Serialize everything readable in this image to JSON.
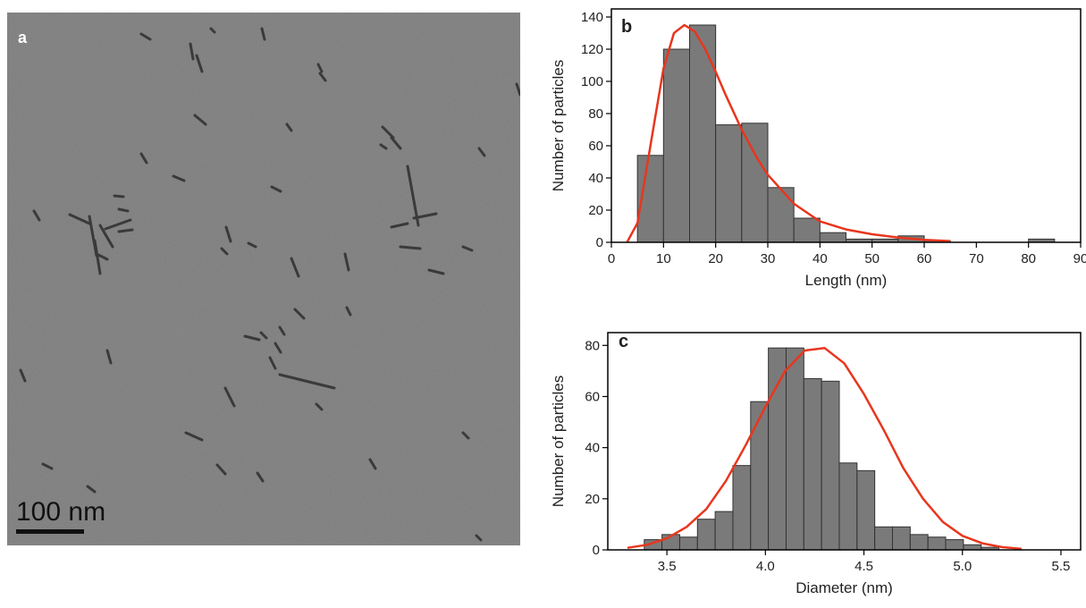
{
  "panel_a": {
    "label": "a",
    "scalebar_label": "100 nm"
  },
  "colors": {
    "bar_fill": "#7a7a7a",
    "bar_stroke": "#333333",
    "fit_line": "#e8361e",
    "tem_background": "#8c8c8c"
  },
  "chart_data": [
    {
      "type": "bar",
      "panel_label": "b",
      "title": "",
      "xlabel": "Length (nm)",
      "ylabel": "Number of particles",
      "xlim": [
        0,
        90
      ],
      "ylim": [
        0,
        145
      ],
      "xticks": [
        0,
        10,
        20,
        30,
        40,
        50,
        60,
        70,
        80,
        90
      ],
      "yticks": [
        0,
        20,
        40,
        60,
        80,
        100,
        120,
        140
      ],
      "bin_width": 5,
      "bins": [
        {
          "x": 7.5,
          "value": 54
        },
        {
          "x": 12.5,
          "value": 120
        },
        {
          "x": 17.5,
          "value": 135
        },
        {
          "x": 22.5,
          "value": 73
        },
        {
          "x": 27.5,
          "value": 74
        },
        {
          "x": 32.5,
          "value": 34
        },
        {
          "x": 37.5,
          "value": 15
        },
        {
          "x": 42.5,
          "value": 6
        },
        {
          "x": 47.5,
          "value": 2
        },
        {
          "x": 52.5,
          "value": 2
        },
        {
          "x": 57.5,
          "value": 4
        },
        {
          "x": 62.5,
          "value": 1
        },
        {
          "x": 82.5,
          "value": 2
        }
      ],
      "fit_curve": {
        "type": "lognormal",
        "x": [
          3,
          5,
          8,
          10,
          12,
          14,
          16,
          18,
          20,
          22,
          25,
          28,
          30,
          35,
          40,
          45,
          50,
          55,
          60,
          65
        ],
        "y": [
          0,
          12,
          70,
          108,
          130,
          135,
          131,
          120,
          106,
          91,
          70,
          52,
          42,
          24,
          13,
          8,
          5,
          3,
          1.5,
          0.8
        ]
      }
    },
    {
      "type": "bar",
      "panel_label": "c",
      "title": "",
      "xlabel": "Diameter (nm)",
      "ylabel": "Number of particles",
      "xlim": [
        3.2,
        5.6
      ],
      "ylim": [
        0,
        85
      ],
      "xticks": [
        3.5,
        4.0,
        4.5,
        5.0,
        5.5
      ],
      "yticks": [
        0,
        20,
        40,
        60,
        80
      ],
      "bin_width": 0.09,
      "bins": [
        {
          "x": 3.43,
          "value": 4
        },
        {
          "x": 3.52,
          "value": 6
        },
        {
          "x": 3.61,
          "value": 5
        },
        {
          "x": 3.7,
          "value": 12
        },
        {
          "x": 3.79,
          "value": 15
        },
        {
          "x": 3.88,
          "value": 33
        },
        {
          "x": 3.97,
          "value": 58
        },
        {
          "x": 4.06,
          "value": 79
        },
        {
          "x": 4.15,
          "value": 79
        },
        {
          "x": 4.24,
          "value": 67
        },
        {
          "x": 4.33,
          "value": 66
        },
        {
          "x": 4.42,
          "value": 34
        },
        {
          "x": 4.51,
          "value": 31
        },
        {
          "x": 4.6,
          "value": 9
        },
        {
          "x": 4.69,
          "value": 9
        },
        {
          "x": 4.78,
          "value": 6
        },
        {
          "x": 4.87,
          "value": 5
        },
        {
          "x": 4.96,
          "value": 4
        },
        {
          "x": 5.05,
          "value": 2
        },
        {
          "x": 5.14,
          "value": 1
        }
      ],
      "fit_curve": {
        "type": "gaussian",
        "x": [
          3.3,
          3.4,
          3.5,
          3.6,
          3.7,
          3.8,
          3.9,
          4.0,
          4.1,
          4.2,
          4.3,
          4.4,
          4.5,
          4.6,
          4.7,
          4.8,
          4.9,
          5.0,
          5.1,
          5.2,
          5.3
        ],
        "y": [
          0.8,
          2,
          4.5,
          9,
          16,
          27,
          41,
          56,
          70,
          78,
          79,
          73,
          61,
          47,
          32,
          20,
          11,
          5.5,
          2.6,
          1.1,
          0.4
        ]
      }
    }
  ]
}
